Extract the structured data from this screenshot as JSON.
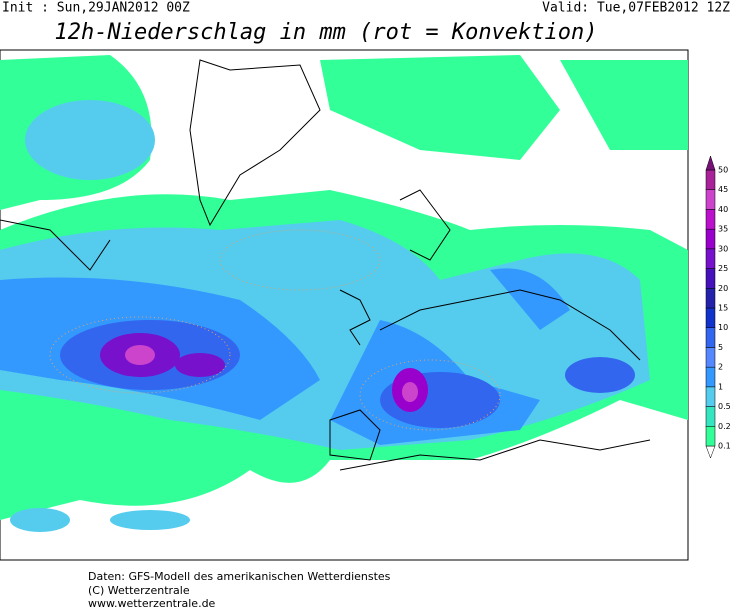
{
  "header": {
    "init": "Init : Sun,29JAN2012 00Z",
    "valid": "Valid: Tue,07FEB2012 12Z",
    "title": "12h-Niederschlag in mm (rot = Konvektion)"
  },
  "legend": {
    "levels": [
      0.1,
      0.2,
      0.5,
      1,
      2,
      5,
      10,
      15,
      20,
      25,
      30,
      35,
      40,
      45,
      50
    ],
    "colors": [
      "#33ff99",
      "#33e6c0",
      "#55ccee",
      "#3399ff",
      "#5588ff",
      "#3366ee",
      "#1133cc",
      "#2222aa",
      "#4411bb",
      "#7711cc",
      "#9900cc",
      "#bb11cc",
      "#cc44cc",
      "#aa2299",
      "#771177"
    ]
  },
  "footer": {
    "lines": [
      "Daten: GFS-Modell des amerikanischen Wetterdienstes",
      "(C) Wetterzentrale",
      "www.wetterzentrale.de"
    ]
  }
}
